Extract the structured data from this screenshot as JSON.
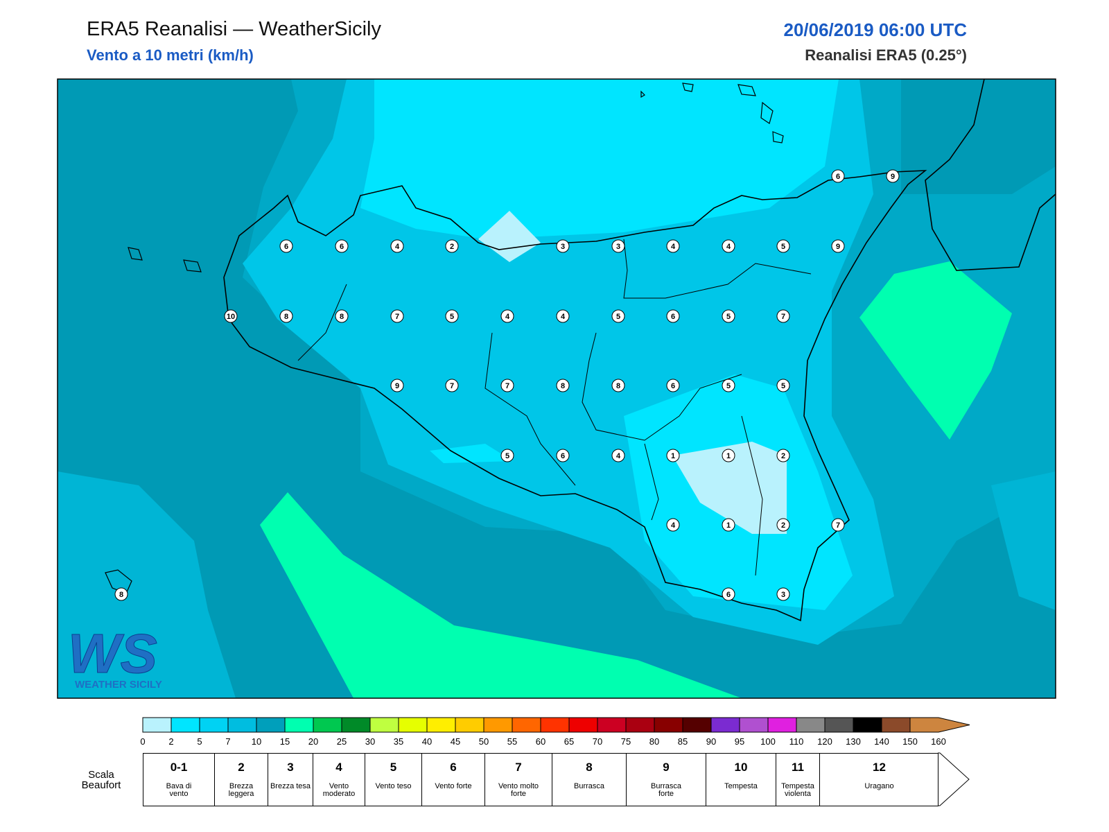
{
  "header": {
    "title": "ERA5 Reanalisi — WeatherSicily",
    "subtitle": "Vento a 10 metri (km/h)",
    "datetime": "20/06/2019 06:00 UTC",
    "source": "Reanalisi ERA5 (0.25°)"
  },
  "logo": {
    "mark": "WS",
    "text": "WEATHER SICILY"
  },
  "map": {
    "stations": [
      6,
      9,
      6,
      6,
      4,
      2,
      3,
      3,
      4,
      4,
      5,
      9,
      10,
      8,
      8,
      7,
      5,
      4,
      4,
      5,
      6,
      5,
      7,
      9,
      7,
      7,
      8,
      8,
      6,
      5,
      5,
      5,
      6,
      4,
      1,
      1,
      2,
      4,
      1,
      2,
      7,
      8,
      6,
      3
    ]
  },
  "legend": {
    "ticks": [
      0,
      2,
      5,
      7,
      10,
      15,
      20,
      25,
      30,
      35,
      40,
      45,
      50,
      55,
      60,
      65,
      70,
      75,
      80,
      85,
      90,
      95,
      100,
      110,
      120,
      130,
      140,
      150,
      160
    ],
    "colors": [
      "#b9f2fd",
      "#00e5ff",
      "#00d2f3",
      "#00bde0",
      "#009fbb",
      "#00ffb0",
      "#00c850",
      "#008a28",
      "#bfff40",
      "#e6ff00",
      "#ffee00",
      "#ffcc00",
      "#ff9900",
      "#ff6600",
      "#ff3300",
      "#ee0000",
      "#cc0022",
      "#aa0011",
      "#880000",
      "#550000",
      "#7b2bd1",
      "#b050d0",
      "#e020e0",
      "#888888",
      "#555555",
      "#000000",
      "#8b4a2a",
      "#cd853f"
    ]
  },
  "beaufort": {
    "label": "Scala Beaufort",
    "levels": [
      {
        "force": "0-1",
        "desc": "Bava di vento"
      },
      {
        "force": "2",
        "desc": "Brezza leggera"
      },
      {
        "force": "3",
        "desc": "Brezza tesa"
      },
      {
        "force": "4",
        "desc": "Vento moderato"
      },
      {
        "force": "5",
        "desc": "Vento teso"
      },
      {
        "force": "6",
        "desc": "Vento forte"
      },
      {
        "force": "7",
        "desc": "Vento molto forte"
      },
      {
        "force": "8",
        "desc": "Burrasca"
      },
      {
        "force": "9",
        "desc": "Burrasca forte"
      },
      {
        "force": "10",
        "desc": "Tempesta"
      },
      {
        "force": "11",
        "desc": "Tempesta violenta"
      },
      {
        "force": "12",
        "desc": "Uragano"
      }
    ]
  }
}
